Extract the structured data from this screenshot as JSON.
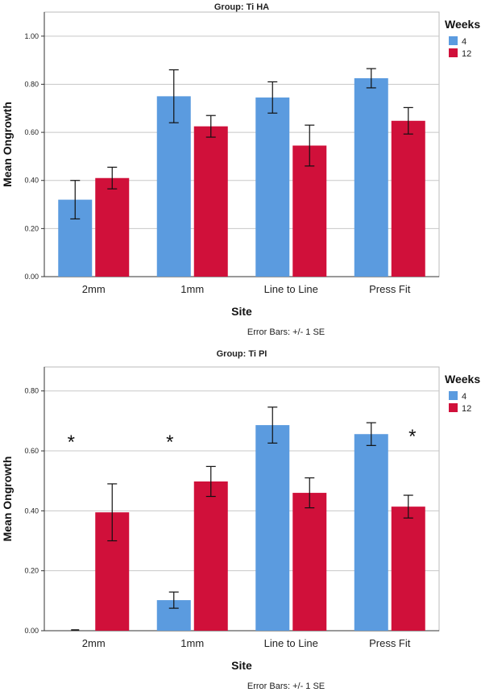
{
  "chart_data": [
    {
      "type": "bar",
      "title": "Group: Ti HA",
      "xlabel": "Site",
      "ylabel": "Mean Ongrowth",
      "categories": [
        "2mm",
        "1mm",
        "Line to Line",
        "Press Fit"
      ],
      "ylim": [
        0,
        1.1
      ],
      "yticks": [
        "0.00",
        "0.20",
        "0.40",
        "0.60",
        "0.80",
        "1.00"
      ],
      "series": [
        {
          "name": "4",
          "color": "#5b9bdf",
          "values": [
            0.32,
            0.75,
            0.745,
            0.825
          ],
          "se": [
            0.08,
            0.11,
            0.065,
            0.04
          ]
        },
        {
          "name": "12",
          "color": "#d0103a",
          "values": [
            0.41,
            0.625,
            0.545,
            0.648
          ],
          "se": [
            0.045,
            0.045,
            0.085,
            0.055
          ]
        }
      ],
      "legend": {
        "title": "Weeks",
        "position": "right"
      },
      "note": "Error Bars: +/- 1 SE",
      "annotations": []
    },
    {
      "type": "bar",
      "title": "Group: Ti PI",
      "xlabel": "Site",
      "ylabel": "Mean Ongrowth",
      "categories": [
        "2mm",
        "1mm",
        "Line to Line",
        "Press Fit"
      ],
      "ylim": [
        0,
        0.88
      ],
      "yticks": [
        "0.00",
        "0.20",
        "0.40",
        "0.60",
        "0.80"
      ],
      "series": [
        {
          "name": "4",
          "color": "#5b9bdf",
          "values": [
            0.0,
            0.102,
            0.686,
            0.656
          ],
          "se": [
            0.0,
            0.027,
            0.06,
            0.038
          ]
        },
        {
          "name": "12",
          "color": "#d0103a",
          "values": [
            0.395,
            0.498,
            0.46,
            0.414
          ],
          "se": [
            0.095,
            0.05,
            0.05,
            0.038
          ]
        }
      ],
      "legend": {
        "title": "Weeks",
        "position": "right"
      },
      "note": "Error Bars: +/- 1 SE",
      "annotations": [
        {
          "text": "*",
          "category": 0,
          "y": 0.64
        },
        {
          "text": "*",
          "category": 1,
          "y": 0.64
        },
        {
          "text": "*",
          "category": 3,
          "y": 0.66,
          "offset": "right"
        }
      ]
    }
  ]
}
